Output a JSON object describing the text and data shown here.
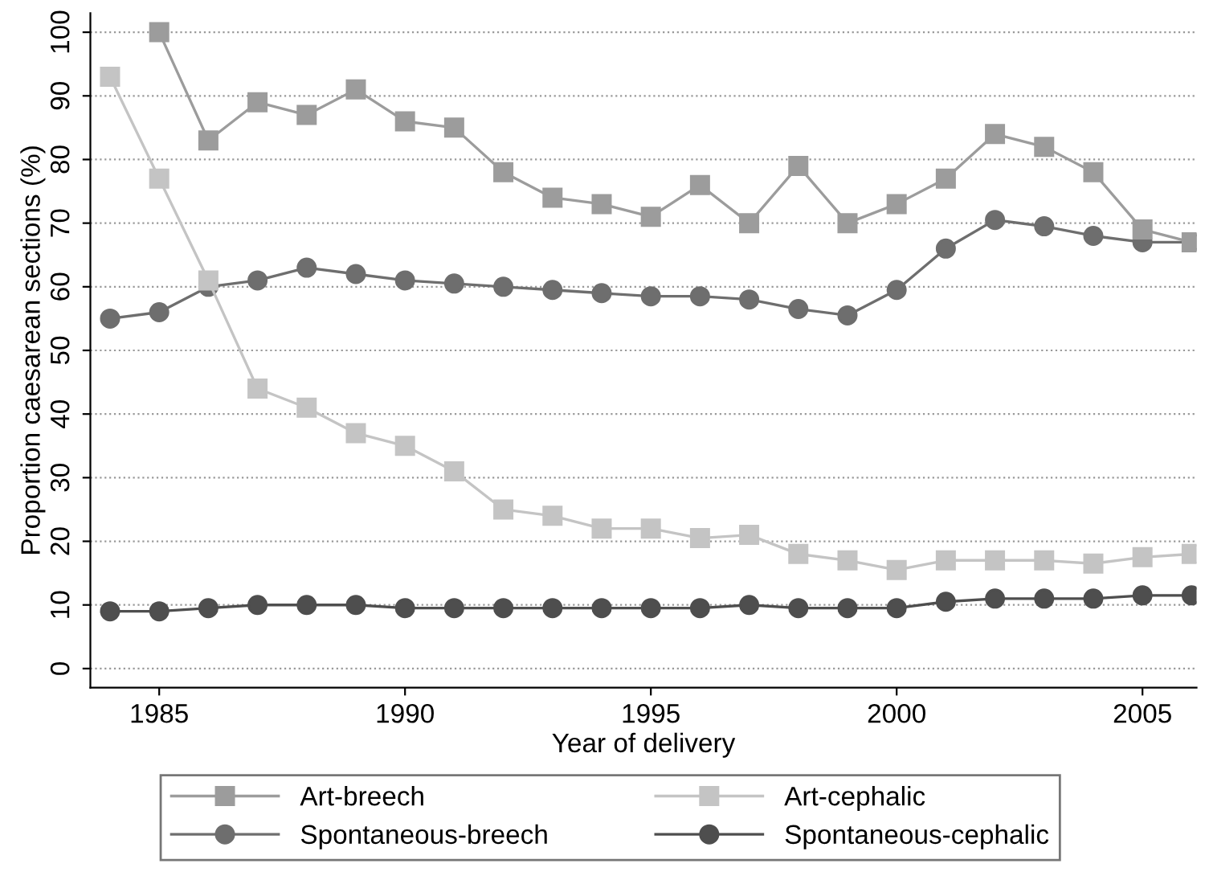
{
  "chart_data": {
    "type": "line",
    "xlabel": "Year of delivery",
    "ylabel": "Proportion caesarean sections (%)",
    "x": [
      1984,
      1985,
      1986,
      1987,
      1988,
      1989,
      1990,
      1991,
      1992,
      1993,
      1994,
      1995,
      1996,
      1997,
      1998,
      1999,
      2000,
      2001,
      2002,
      2003,
      2004,
      2005,
      2006
    ],
    "series": [
      {
        "name": "Art-breech",
        "color": "#9c9c9c",
        "marker": "square",
        "values": [
          null,
          100,
          83,
          89,
          87,
          91,
          86,
          85,
          78,
          74,
          73,
          71,
          76,
          70,
          79,
          70,
          73,
          77,
          84,
          82,
          78,
          69,
          67
        ]
      },
      {
        "name": "Art-cephalic",
        "color": "#c4c4c4",
        "marker": "square",
        "values": [
          93,
          77,
          61,
          44,
          41,
          37,
          35,
          31,
          25,
          24,
          22,
          22,
          20.5,
          21,
          18,
          17,
          15.5,
          17,
          17,
          17,
          16.5,
          17.5,
          18
        ]
      },
      {
        "name": "Spontaneous-breech",
        "color": "#6e6e6e",
        "marker": "circle",
        "values": [
          55,
          56,
          60,
          61,
          63,
          62,
          61,
          60.5,
          60,
          59.5,
          59,
          58.5,
          58.5,
          58,
          56.5,
          55.5,
          59.5,
          66,
          70.5,
          69.5,
          68,
          67,
          67
        ]
      },
      {
        "name": "Spontaneous-cephalic",
        "color": "#4e4e4e",
        "marker": "circle",
        "values": [
          9,
          9,
          9.5,
          10,
          10,
          10,
          9.5,
          9.5,
          9.5,
          9.5,
          9.5,
          9.5,
          9.5,
          10,
          9.5,
          9.5,
          9.5,
          10.5,
          11,
          11,
          11,
          11.5,
          11.5
        ]
      }
    ],
    "xlim": [
      1983.6,
      2006.1
    ],
    "xticks": [
      1985,
      1990,
      1995,
      2000,
      2005
    ],
    "ylim": [
      -3,
      103
    ],
    "yticks": [
      0,
      10,
      20,
      30,
      40,
      50,
      60,
      70,
      80,
      90,
      100
    ],
    "grid": "y",
    "legend": "bottom"
  }
}
